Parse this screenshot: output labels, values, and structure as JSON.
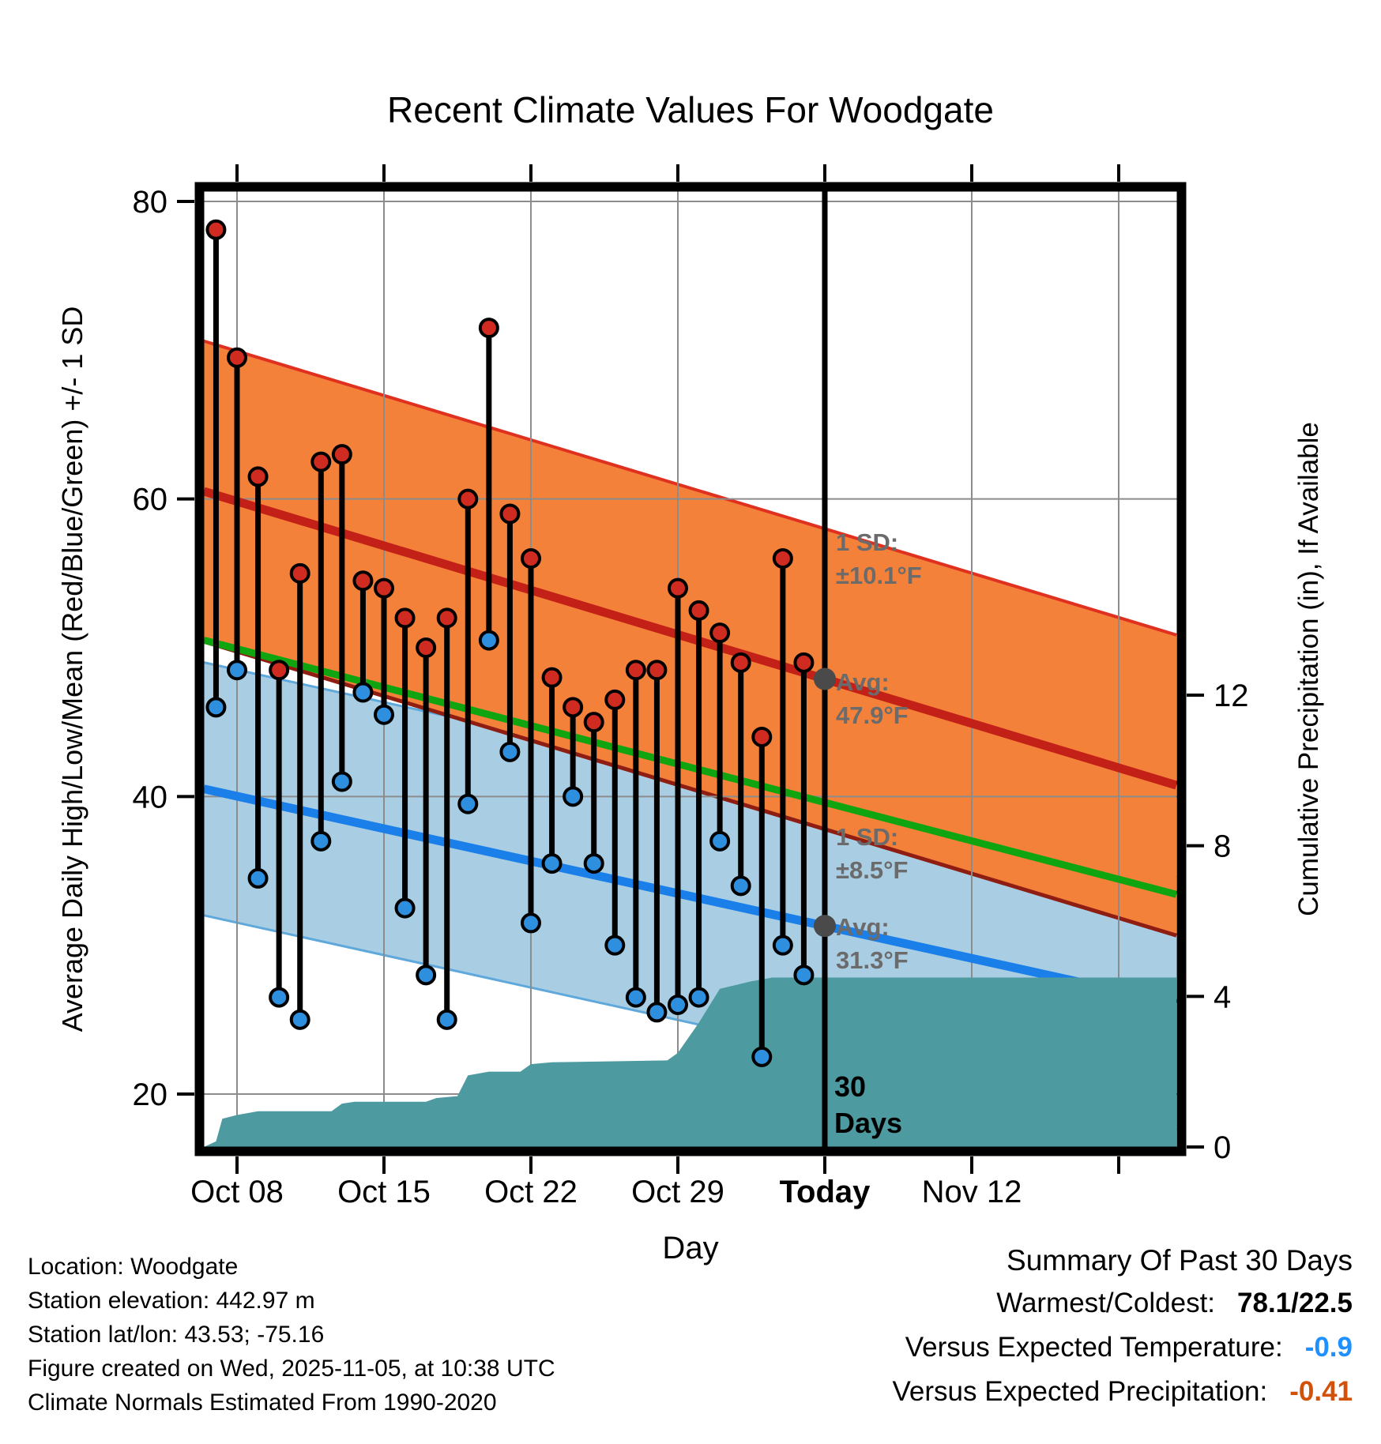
{
  "title": "Recent Climate Values For Woodgate",
  "axes": {
    "y_left_label": "Average Daily High/Low/Mean (Red/Blue/Green) +/- 1 SD",
    "y_right_label": "Cumulative Precipitation (in), If Available",
    "x_label": "Day"
  },
  "chart_data": {
    "type": "combo",
    "subtypes": [
      "stem-scatter",
      "normal-band",
      "area"
    ],
    "title": "Recent Climate Values For Woodgate",
    "xlabel": "Day",
    "ylabel_left": "Average Daily High/Low/Mean (Red/Blue/Green) +/- 1 SD",
    "ylabel_right": "Cumulative Precipitation (in), If Available",
    "x_axis": {
      "day0": "Oct 05",
      "domain_days": [
        1.42,
        47.75
      ],
      "ticks": [
        {
          "day": 3,
          "label": "Oct 08",
          "bold": false
        },
        {
          "day": 10,
          "label": "Oct 15",
          "bold": false
        },
        {
          "day": 17,
          "label": "Oct 22",
          "bold": false
        },
        {
          "day": 24,
          "label": "Oct 29",
          "bold": false
        },
        {
          "day": 31,
          "label": "Today",
          "bold": true
        },
        {
          "day": 38,
          "label": "Nov 12",
          "bold": false
        },
        {
          "day": 45,
          "label": "",
          "bold": false
        }
      ]
    },
    "y_temp_axis": {
      "ticks": [
        80,
        60,
        40,
        20
      ],
      "range": [
        16.4,
        80.7
      ]
    },
    "y_precip_axis": {
      "ticks": [
        12,
        8,
        4,
        0
      ],
      "range": [
        0,
        25.4
      ]
    },
    "daily": {
      "dates": [
        "Oct 07",
        "Oct 08",
        "Oct 09",
        "Oct 10",
        "Oct 11",
        "Oct 12",
        "Oct 13",
        "Oct 14",
        "Oct 15",
        "Oct 16",
        "Oct 17",
        "Oct 18",
        "Oct 19",
        "Oct 20",
        "Oct 21",
        "Oct 22",
        "Oct 23",
        "Oct 24",
        "Oct 25",
        "Oct 26",
        "Oct 27",
        "Oct 28",
        "Oct 29",
        "Oct 30",
        "Oct 31",
        "Nov 01",
        "Nov 02",
        "Nov 03",
        "Nov 04"
      ],
      "days": [
        2,
        3,
        4,
        5,
        6,
        7,
        8,
        9,
        10,
        11,
        12,
        13,
        14,
        15,
        16,
        17,
        18,
        19,
        20,
        21,
        22,
        23,
        24,
        25,
        26,
        27,
        28,
        29,
        30
      ],
      "high": [
        78.1,
        69.5,
        61.5,
        48.5,
        55,
        62.5,
        63,
        54.5,
        54,
        52,
        50,
        52,
        60,
        71.5,
        59,
        56,
        48,
        46,
        45,
        46.5,
        48.5,
        48.5,
        54,
        52.5,
        51,
        49,
        44,
        56,
        49
      ],
      "low": [
        46,
        48.5,
        34.5,
        26.5,
        25,
        37,
        41,
        47,
        45.5,
        32.5,
        28,
        25,
        39.5,
        50.5,
        43,
        31.5,
        35.5,
        40,
        35.5,
        30,
        26.5,
        25.5,
        26,
        26.5,
        37,
        34,
        22.5,
        30,
        28
      ]
    },
    "normals": {
      "source": "Climate Normals Estimated From 1990-2020",
      "today_day": 31,
      "high_avg": 47.9,
      "high_sd": 10.1,
      "high_trend_per_day": -0.4264,
      "low_avg": 31.3,
      "low_sd": 8.5,
      "low_trend_per_day": -0.3114
    },
    "precip_cumulative": {
      "days": [
        1.42,
        2,
        2.3,
        3,
        4,
        7.5,
        8,
        8.6,
        12,
        12.5,
        13.5,
        14,
        15,
        16.5,
        17,
        18,
        23.5,
        24,
        25,
        26,
        27.5,
        28.5,
        47.75
      ],
      "values": [
        0,
        0.15,
        0.75,
        0.85,
        0.95,
        0.95,
        1.15,
        1.2,
        1.2,
        1.3,
        1.35,
        1.9,
        2.0,
        2.0,
        2.2,
        2.25,
        2.3,
        2.5,
        3.3,
        4.2,
        4.4,
        4.5,
        4.5
      ]
    },
    "annotations": [
      {
        "id": "high-sd",
        "lines": [
          "1 SD:",
          "±10.1°F"
        ]
      },
      {
        "id": "high-avg",
        "lines": [
          "Avg:",
          "47.9°F"
        ]
      },
      {
        "id": "low-sd",
        "lines": [
          "1 SD:",
          "±8.5°F"
        ]
      },
      {
        "id": "low-avg",
        "lines": [
          "Avg:",
          "31.3°F"
        ]
      },
      {
        "id": "days-30",
        "lines": [
          "30",
          "Days"
        ]
      }
    ]
  },
  "colors": {
    "high_band": "#F4813A",
    "high_band_upper_edge": "#E03020",
    "high_band_lower_edge": "#8F1D12",
    "high_line": "#C32017",
    "low_band": "#A9CEE4",
    "low_band_edge": "#5FA8DC",
    "low_line": "#1A7FE8",
    "mean_line": "#10A510",
    "precip_fill": "#4D9BA1",
    "grid": "#8C8C8C",
    "stem": "#000000",
    "high_dot": "#CF2B20",
    "low_dot": "#2F8FDF",
    "today_line": "#000000",
    "avg_marker": "#4A4A4A",
    "annotation_text": "#6B6B6B",
    "summary_temp_value": "#1E90FF",
    "summary_precip_value": "#D2520A"
  },
  "footer": {
    "lines": [
      "Location: Woodgate",
      "Station elevation: 442.97 m",
      "Station lat/lon: 43.53; -75.16",
      "Figure created on Wed, 2025-11-05, at 10:38 UTC",
      "Climate Normals Estimated From 1990-2020"
    ]
  },
  "summary": {
    "title": "Summary Of Past 30 Days",
    "rows": [
      {
        "label": "Warmest/Coldest:",
        "value": "78.1/22.5",
        "color": "#000000"
      },
      {
        "label": "Versus Expected Temperature:",
        "value": "-0.9",
        "color": "#1E90FF"
      },
      {
        "label": "Versus Expected Precipitation:",
        "value": "-0.41",
        "color": "#D2520A"
      }
    ]
  }
}
